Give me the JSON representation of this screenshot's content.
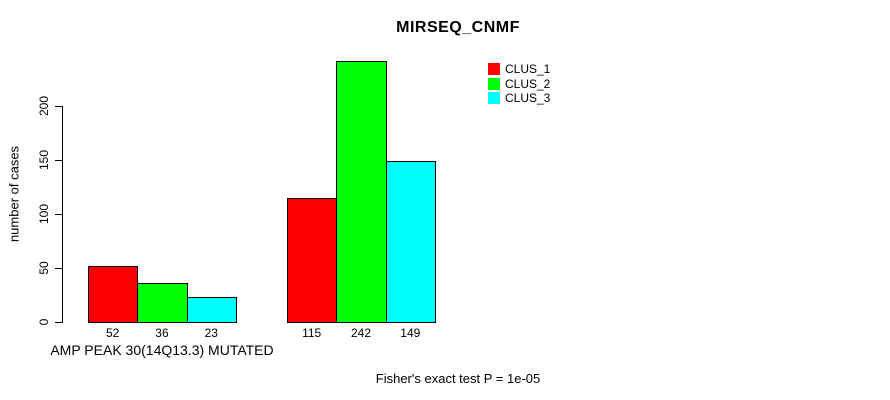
{
  "chart_data": {
    "type": "bar",
    "title": "MIRSEQ_CNMF",
    "ylabel": "number of cases",
    "xlabel": "",
    "yticks": [
      0,
      50,
      100,
      150,
      200
    ],
    "ylim": [
      0,
      250
    ],
    "grid": false,
    "legend_position": "top-right",
    "categories": [
      "AMP PEAK 30(14Q13.3) MUTATED",
      ""
    ],
    "series": [
      {
        "name": "CLUS_1",
        "color": "#FF0000",
        "values": [
          52,
          115
        ]
      },
      {
        "name": "CLUS_2",
        "color": "#00FF00",
        "values": [
          36,
          242
        ]
      },
      {
        "name": "CLUS_3",
        "color": "#00FFFF",
        "values": [
          23,
          149
        ]
      }
    ],
    "bar_value_labels_shown": true,
    "annotation": "Fisher's exact test P = 1e-05"
  }
}
